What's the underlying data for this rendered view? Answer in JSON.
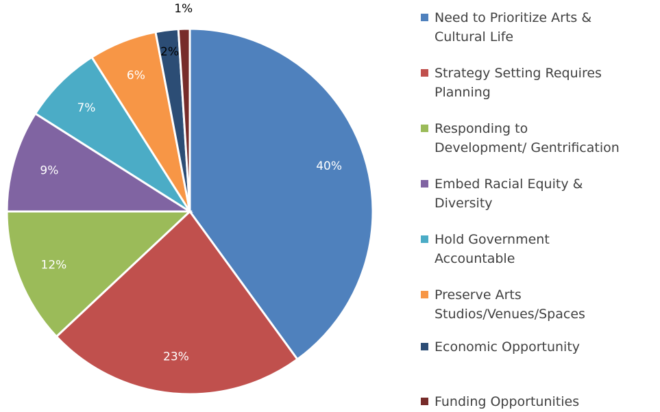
{
  "chart_data": {
    "type": "pie",
    "categories": [
      "Need to Prioritize Arts &\nCultural Life",
      "Strategy Setting Requires\nPlanning",
      "Responding to\nDevelopment/ Gentrification",
      "Embed Racial Equity &\nDiversity",
      "Hold Government\nAccountable",
      "Preserve Arts\nStudios/Venues/Spaces",
      "Economic Opportunity",
      "Funding Opportunities"
    ],
    "values": [
      40,
      23,
      12,
      9,
      7,
      6,
      2,
      1
    ],
    "value_labels": [
      "40%",
      "23%",
      "12%",
      "9%",
      "7%",
      "6%",
      "2%",
      "1%"
    ],
    "colors": [
      "#4f81bd",
      "#c0504d",
      "#9bbb59",
      "#8064a2",
      "#4bacc6",
      "#f79646",
      "#2c4d75",
      "#772c2a"
    ],
    "legend": "right"
  }
}
